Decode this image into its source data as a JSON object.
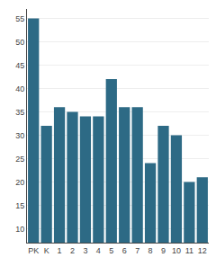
{
  "chart_data": {
    "type": "bar",
    "categories": [
      "PK",
      "K",
      "1",
      "2",
      "3",
      "4",
      "5",
      "6",
      "7",
      "8",
      "9",
      "10",
      "11",
      "12"
    ],
    "values": [
      55,
      32,
      36,
      35,
      34,
      34,
      42,
      36,
      36,
      24,
      32,
      30,
      20,
      21
    ],
    "color": "#2d6a85",
    "ylim": [
      7,
      57
    ],
    "yticks": [
      10,
      15,
      20,
      25,
      30,
      35,
      40,
      45,
      50,
      55
    ],
    "grid": true
  }
}
